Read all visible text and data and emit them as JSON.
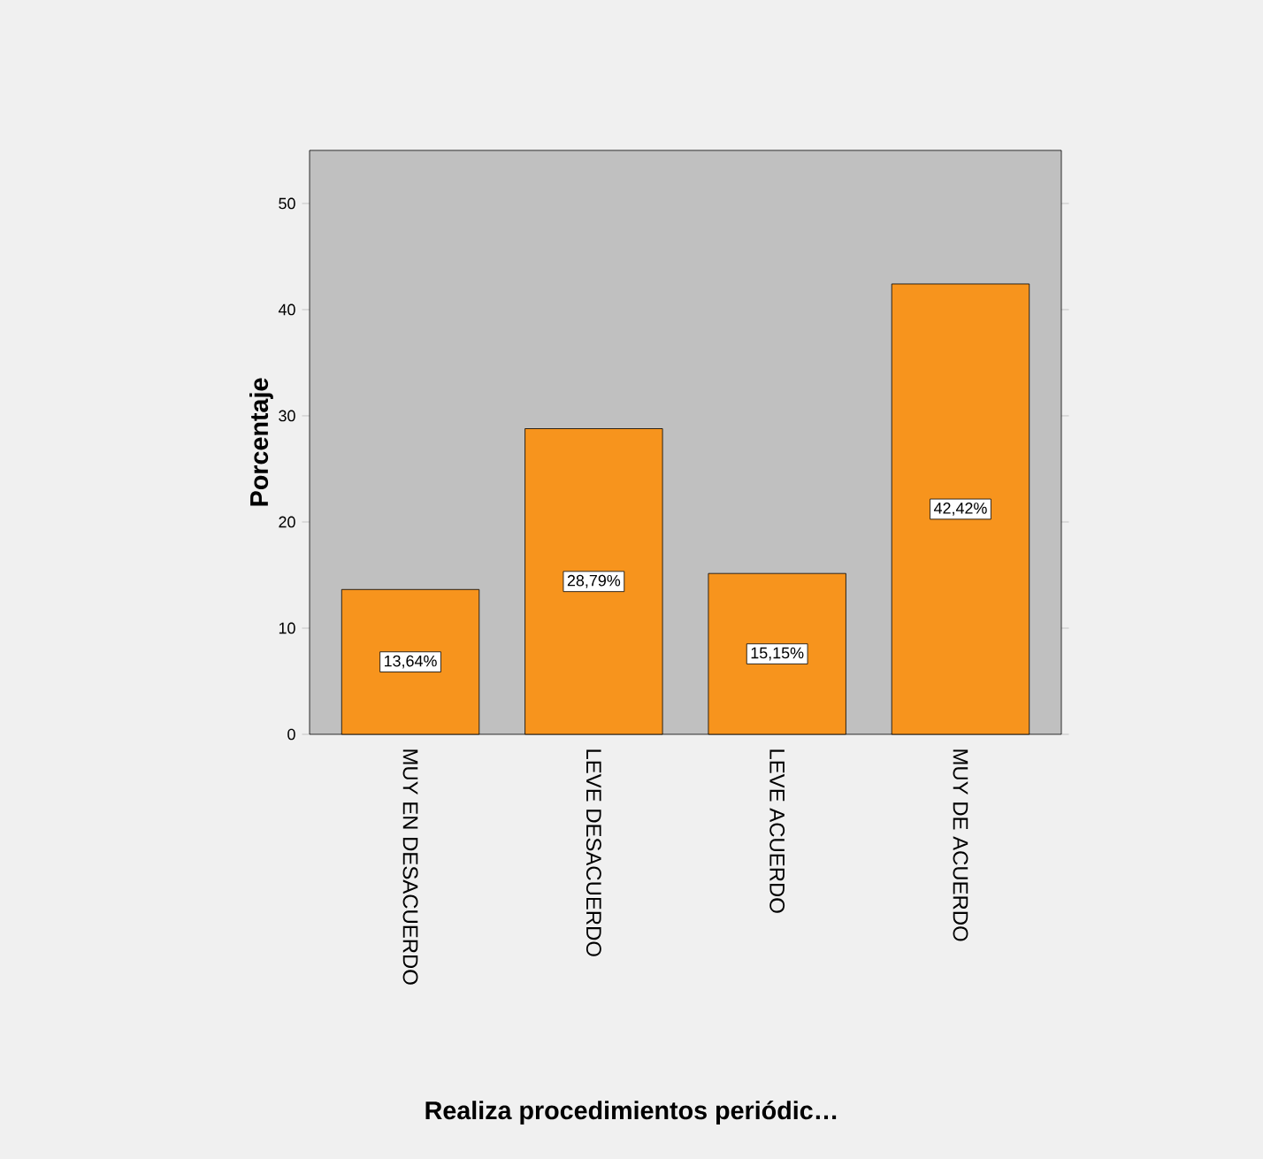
{
  "chart_data": {
    "type": "bar",
    "xlabel": "Realiza procedimientos periódic…",
    "ylabel": "Porcentaje",
    "categories": [
      "MUY EN DESACUERDO",
      "LEVE DESACUERDO",
      "LEVE ACUERDO",
      "MUY DE ACUERDO"
    ],
    "values": [
      13.64,
      28.79,
      15.15,
      42.42
    ],
    "value_labels": [
      "13,64%",
      "28,79%",
      "15,15%",
      "42,42%"
    ],
    "color": "#f7941d",
    "ylim": [
      0,
      55
    ],
    "yticks": [
      0,
      10,
      20,
      30,
      40,
      50
    ]
  }
}
